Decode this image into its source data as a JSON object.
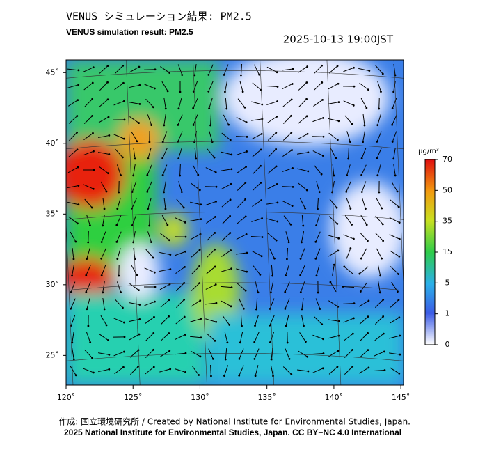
{
  "header": {
    "title": "VENUS シミュレーション結果: PM2.5",
    "subtitle": "VENUS simulation result: PM2.5",
    "timestamp": "2025-10-13 19:00JST"
  },
  "map": {
    "lon_range": [
      120,
      145.2
    ],
    "lat_range": [
      22.9,
      45.9
    ],
    "lon_ticks": [
      {
        "value": 120,
        "label": "120˚"
      },
      {
        "value": 125,
        "label": "125˚"
      },
      {
        "value": 130,
        "label": "130˚"
      },
      {
        "value": 135,
        "label": "135˚"
      },
      {
        "value": 140,
        "label": "140˚"
      },
      {
        "value": 145,
        "label": "145˚"
      }
    ],
    "lat_ticks": [
      {
        "value": 45,
        "label": "45˚"
      },
      {
        "value": 40,
        "label": "40˚"
      },
      {
        "value": 35,
        "label": "35˚"
      },
      {
        "value": 30,
        "label": "30˚"
      },
      {
        "value": 25,
        "label": "25˚"
      }
    ]
  },
  "colorbar": {
    "unit": "µg/m³",
    "ticks": [
      0,
      1,
      5,
      15,
      35,
      50,
      70
    ]
  },
  "footer": {
    "credit": "作成: 国立環境研究所 / Created by National Institute for Environmental Studies, Japan.",
    "copyright": "2025 National Institute for Environmental Studies, Japan. CC BY−NC 4.0 International"
  }
}
